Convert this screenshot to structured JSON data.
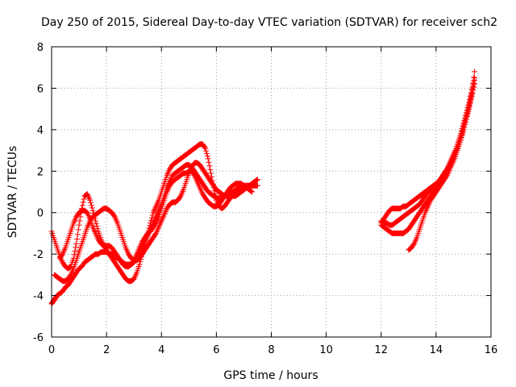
{
  "chart_data": {
    "type": "scatter",
    "title": "Day 250 of 2015, Sidereal Day-to-day VTEC variation (SDTVAR) for receiver sch2",
    "xlabel": "GPS time / hours",
    "ylabel": "SDTVAR / TECUs",
    "xlim": [
      0,
      16
    ],
    "ylim": [
      -6,
      8
    ],
    "xticks": [
      "0",
      "2",
      "4",
      "6",
      "8",
      "10",
      "12",
      "14",
      "16"
    ],
    "yticks": [
      "-6",
      "-4",
      "-2",
      "0",
      "2",
      "4",
      "6",
      "8"
    ],
    "grid": true,
    "legend": "none",
    "marker": "+",
    "color": "#ff0000",
    "series": [
      {
        "x": [
          0.0,
          0.05,
          0.1,
          0.15,
          0.2,
          0.3,
          0.4,
          0.5,
          0.6,
          0.7,
          0.8,
          0.9,
          1.0,
          1.1,
          1.2,
          1.3,
          1.4,
          1.5,
          1.6,
          1.7,
          1.8,
          1.9,
          2.0,
          2.1,
          2.2,
          2.3,
          2.4,
          2.5,
          2.6,
          2.7,
          2.8,
          2.9,
          3.0,
          3.1,
          3.2,
          3.3,
          3.4,
          3.5,
          3.6,
          3.7,
          3.8,
          3.9,
          4.0,
          4.1,
          4.2,
          4.3,
          4.4,
          4.5,
          4.6,
          4.7,
          4.8,
          4.9,
          5.0,
          5.1,
          5.2,
          5.3,
          5.4,
          5.5,
          5.6,
          5.7,
          5.8,
          5.9,
          6.0,
          6.1,
          6.2,
          6.3,
          6.4,
          6.5,
          6.6,
          6.7,
          6.8,
          6.9,
          7.0,
          7.1,
          7.2,
          7.3,
          7.4,
          7.5
        ],
        "y": [
          -4.4,
          -4.3,
          -4.2,
          -4.1,
          -4.0,
          -3.9,
          -3.8,
          -3.6,
          -3.5,
          -3.3,
          -3.1,
          -2.9,
          -2.7,
          -2.6,
          -2.4,
          -2.3,
          -2.2,
          -2.1,
          -2.0,
          -2.0,
          -1.9,
          -1.9,
          -1.9,
          -2.0,
          -2.0,
          -2.1,
          -2.2,
          -2.3,
          -2.4,
          -2.5,
          -2.5,
          -2.5,
          -2.4,
          -2.2,
          -2.0,
          -1.7,
          -1.4,
          -1.1,
          -0.8,
          -0.5,
          -0.2,
          0.1,
          0.4,
          0.8,
          1.2,
          1.5,
          1.8,
          1.9,
          2.0,
          2.1,
          2.2,
          2.3,
          2.3,
          2.2,
          2.0,
          1.8,
          1.6,
          1.4,
          1.2,
          1.0,
          0.9,
          0.8,
          0.7,
          0.7,
          0.7,
          0.8,
          0.9,
          1.0,
          1.0,
          1.1,
          1.2,
          1.2,
          1.3,
          1.3,
          1.3,
          1.3,
          1.3,
          1.3
        ]
      },
      {
        "x": [
          0.0,
          0.1,
          0.2,
          0.3,
          0.4,
          0.5,
          0.6,
          0.7,
          0.8,
          0.9,
          1.0,
          1.1,
          1.2,
          1.3,
          1.4,
          1.5,
          1.6,
          1.7,
          1.8,
          1.9,
          2.0,
          2.1,
          2.2,
          2.3,
          2.4,
          2.5,
          2.6,
          2.7,
          2.8,
          2.9,
          3.0,
          3.1,
          3.2,
          3.3,
          3.4,
          3.5,
          3.6,
          3.7,
          3.8,
          3.9,
          4.0,
          4.1,
          4.2,
          4.3,
          4.4,
          4.5,
          4.6,
          4.7,
          4.8,
          4.9,
          5.0,
          5.1,
          5.2,
          5.3,
          5.4,
          5.5,
          5.6,
          5.7,
          5.8,
          5.9,
          6.0,
          6.1,
          6.2,
          6.3,
          6.4,
          6.5,
          6.6,
          6.7,
          6.8,
          6.9,
          7.0
        ],
        "y": [
          -0.9,
          -1.3,
          -1.7,
          -2.1,
          -2.4,
          -2.6,
          -2.7,
          -2.6,
          -2.2,
          -1.5,
          -0.6,
          0.2,
          0.8,
          0.9,
          0.6,
          0.1,
          -0.4,
          -0.9,
          -1.3,
          -1.6,
          -1.8,
          -2.0,
          -2.2,
          -2.4,
          -2.6,
          -2.8,
          -3.0,
          -3.2,
          -3.3,
          -3.3,
          -3.2,
          -2.9,
          -2.5,
          -2.0,
          -1.5,
          -1.0,
          -0.5,
          0.0,
          0.3,
          0.6,
          1.0,
          1.4,
          1.8,
          2.1,
          2.3,
          2.4,
          2.5,
          2.6,
          2.7,
          2.8,
          2.9,
          3.0,
          3.1,
          3.2,
          3.3,
          3.3,
          3.1,
          2.6,
          1.9,
          1.2,
          0.6,
          0.3,
          0.2,
          0.3,
          0.5,
          0.7,
          0.9,
          1.0,
          1.1,
          1.1,
          1.1
        ]
      },
      {
        "x": [
          0.1,
          0.2,
          0.3,
          0.4,
          0.5,
          0.6,
          0.7,
          0.8,
          0.9,
          1.0,
          1.1,
          1.2,
          1.3,
          1.4,
          1.5,
          1.6,
          1.7,
          1.8,
          1.9,
          2.0,
          2.1,
          2.2,
          2.3,
          2.4,
          2.5,
          2.6,
          2.7,
          2.8,
          2.9,
          3.0,
          3.1,
          3.2,
          3.3,
          3.4,
          3.5,
          3.6,
          3.7,
          3.8,
          3.9,
          4.0,
          4.1,
          4.2,
          4.3,
          4.4,
          4.5,
          4.6,
          4.7,
          4.8,
          4.9,
          5.0,
          5.1,
          5.2,
          5.3,
          5.4,
          5.5,
          5.6,
          5.7,
          5.8,
          5.9,
          6.0,
          6.1,
          6.2,
          6.3,
          6.4,
          6.5,
          6.6,
          6.7,
          6.8,
          6.9,
          7.0,
          7.1,
          7.2,
          7.3,
          7.4,
          7.5
        ],
        "y": [
          -3.0,
          -3.1,
          -3.2,
          -3.3,
          -3.3,
          -3.2,
          -3.0,
          -2.7,
          -2.3,
          -1.9,
          -1.5,
          -1.1,
          -0.7,
          -0.4,
          -0.2,
          -0.1,
          0.0,
          0.1,
          0.2,
          0.2,
          0.1,
          0.0,
          -0.2,
          -0.5,
          -0.9,
          -1.3,
          -1.7,
          -2.0,
          -2.2,
          -2.3,
          -2.3,
          -2.2,
          -2.0,
          -1.8,
          -1.6,
          -1.4,
          -1.2,
          -1.0,
          -0.7,
          -0.4,
          -0.1,
          0.2,
          0.4,
          0.5,
          0.5,
          0.6,
          0.8,
          1.1,
          1.5,
          1.9,
          2.2,
          2.4,
          2.4,
          2.3,
          2.1,
          1.9,
          1.7,
          1.5,
          1.3,
          1.1,
          1.0,
          0.9,
          0.8,
          0.8,
          0.8,
          0.8,
          0.8,
          0.9,
          1.0,
          1.1,
          1.2,
          1.3,
          1.4,
          1.5,
          1.6
        ]
      },
      {
        "x": [
          0.3,
          0.4,
          0.5,
          0.6,
          0.7,
          0.8,
          0.9,
          1.0,
          1.1,
          1.2,
          1.3,
          1.4,
          1.5,
          1.6,
          1.7,
          1.8,
          1.9,
          2.0,
          2.1,
          2.2,
          2.3,
          2.4,
          2.5,
          2.6,
          2.7,
          2.8,
          2.9,
          3.0,
          3.1,
          3.2,
          3.3,
          3.4,
          3.5,
          3.6,
          3.7,
          3.8,
          3.9,
          4.0,
          4.1,
          4.2,
          4.3,
          4.4,
          4.5,
          4.6,
          4.7,
          4.8,
          4.9,
          5.0,
          5.1,
          5.2,
          5.3,
          5.4,
          5.5,
          5.6,
          5.7,
          5.8,
          5.9,
          6.0,
          6.1,
          6.2,
          6.3,
          6.4,
          6.5,
          6.6,
          6.7,
          6.8,
          6.9,
          7.0,
          7.1,
          7.2,
          7.3
        ],
        "y": [
          -2.2,
          -2.0,
          -1.7,
          -1.3,
          -0.9,
          -0.5,
          -0.2,
          0.0,
          0.1,
          0.1,
          0.0,
          -0.3,
          -0.7,
          -1.0,
          -1.3,
          -1.5,
          -1.6,
          -1.6,
          -1.6,
          -1.7,
          -1.9,
          -2.1,
          -2.3,
          -2.5,
          -2.6,
          -2.6,
          -2.5,
          -2.3,
          -2.0,
          -1.7,
          -1.4,
          -1.2,
          -1.0,
          -0.9,
          -0.7,
          -0.5,
          -0.2,
          0.2,
          0.6,
          1.0,
          1.3,
          1.5,
          1.6,
          1.7,
          1.8,
          1.9,
          1.9,
          2.0,
          2.0,
          1.8,
          1.5,
          1.2,
          0.9,
          0.7,
          0.5,
          0.4,
          0.3,
          0.3,
          0.4,
          0.6,
          0.8,
          1.0,
          1.2,
          1.3,
          1.4,
          1.4,
          1.4,
          1.3,
          1.2,
          1.1,
          1.0
        ]
      },
      {
        "x": [
          12.0,
          12.1,
          12.2,
          12.3,
          12.4,
          12.5,
          12.6,
          12.7,
          12.8,
          12.9,
          13.0,
          13.1,
          13.2,
          13.3,
          13.4,
          13.5,
          13.6,
          13.7,
          13.8,
          13.9,
          14.0,
          14.1,
          14.2,
          14.3,
          14.4,
          14.5,
          14.6,
          14.7,
          14.8,
          14.9,
          15.0,
          15.1,
          15.2,
          15.3,
          15.4
        ],
        "y": [
          -0.5,
          -0.3,
          -0.1,
          0.1,
          0.2,
          0.2,
          0.2,
          0.2,
          0.3,
          0.3,
          0.4,
          0.5,
          0.6,
          0.7,
          0.8,
          0.9,
          1.0,
          1.1,
          1.2,
          1.3,
          1.4,
          1.5,
          1.7,
          1.9,
          2.1,
          2.4,
          2.7,
          3.0,
          3.4,
          3.8,
          4.3,
          4.8,
          5.3,
          5.9,
          6.5
        ]
      },
      {
        "x": [
          12.0,
          12.1,
          12.2,
          12.3,
          12.4,
          12.5,
          12.6,
          12.7,
          12.8,
          12.9,
          13.0,
          13.1,
          13.2,
          13.3,
          13.4,
          13.5,
          13.6,
          13.7,
          13.8,
          13.9,
          14.0,
          14.1,
          14.2,
          14.3,
          14.4,
          14.5,
          14.6,
          14.7,
          14.8,
          14.9,
          15.0,
          15.1,
          15.2,
          15.3,
          15.4
        ],
        "y": [
          -0.6,
          -0.7,
          -0.8,
          -0.9,
          -1.0,
          -1.0,
          -1.0,
          -1.0,
          -1.0,
          -0.9,
          -0.8,
          -0.6,
          -0.4,
          -0.2,
          0.0,
          0.2,
          0.4,
          0.6,
          0.8,
          1.0,
          1.2,
          1.4,
          1.6,
          1.8,
          2.0,
          2.3,
          2.6,
          2.9,
          3.3,
          3.7,
          4.2,
          4.7,
          5.2,
          5.8,
          6.4
        ]
      },
      {
        "x": [
          12.0,
          12.1,
          12.2,
          12.3,
          12.4,
          12.5,
          12.6,
          12.7,
          12.8,
          12.9,
          13.0,
          13.1,
          13.2,
          13.3,
          13.4,
          13.5,
          13.6,
          13.7,
          13.8,
          13.9,
          14.0,
          14.1,
          14.2,
          14.3,
          14.4,
          14.5,
          14.6,
          14.7,
          14.8,
          14.9,
          15.0,
          15.1,
          15.2,
          15.3,
          15.4
        ],
        "y": [
          -0.4,
          -0.5,
          -0.5,
          -0.6,
          -0.6,
          -0.5,
          -0.4,
          -0.3,
          -0.2,
          -0.1,
          0.0,
          0.1,
          0.2,
          0.3,
          0.4,
          0.6,
          0.8,
          1.0,
          1.1,
          1.2,
          1.3,
          1.5,
          1.7,
          1.9,
          2.1,
          2.3,
          2.6,
          2.9,
          3.2,
          3.6,
          4.0,
          4.5,
          5.0,
          5.6,
          6.2
        ]
      },
      {
        "x": [
          13.0,
          13.1,
          13.2,
          13.3,
          13.4,
          13.5,
          13.6,
          13.7,
          13.8,
          13.9,
          14.0,
          14.1,
          14.2,
          14.3,
          14.4,
          14.5,
          14.6,
          14.7,
          14.8,
          14.9,
          15.0,
          15.1,
          15.2,
          15.3,
          15.4
        ],
        "y": [
          -1.8,
          -1.7,
          -1.5,
          -1.2,
          -0.8,
          -0.4,
          0.0,
          0.3,
          0.6,
          0.8,
          1.0,
          1.2,
          1.4,
          1.6,
          1.8,
          2.1,
          2.4,
          2.7,
          3.1,
          3.5,
          4.0,
          4.5,
          5.1,
          5.7,
          6.8
        ]
      }
    ]
  }
}
